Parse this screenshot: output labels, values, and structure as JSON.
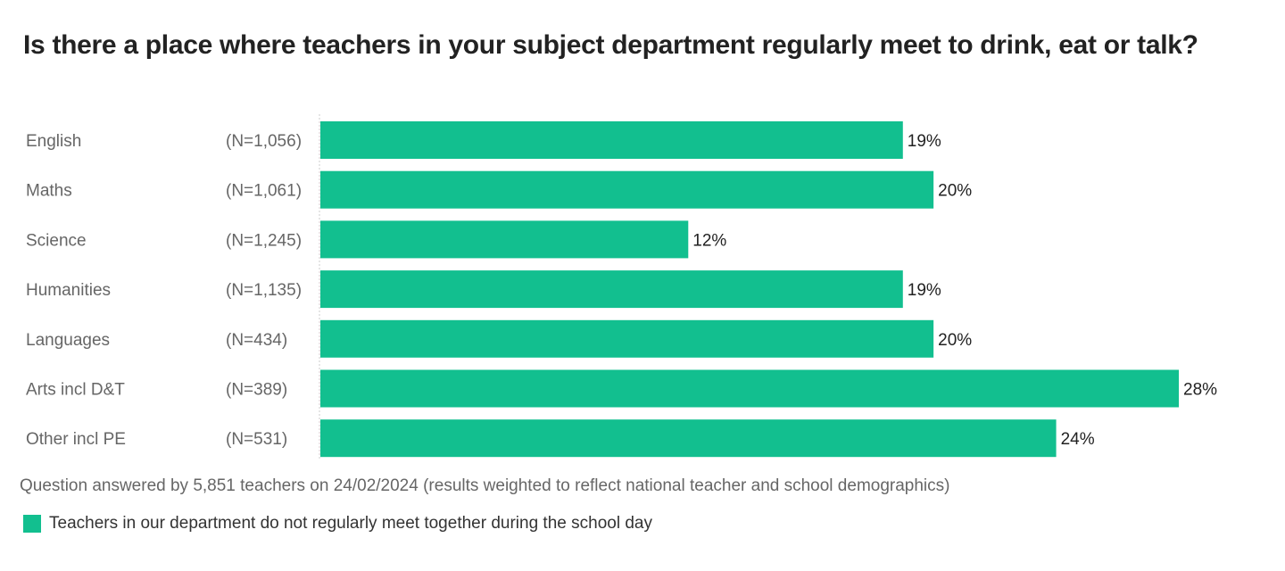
{
  "chart_data": {
    "type": "bar",
    "orientation": "horizontal",
    "title": "Is there a place where teachers in your subject department regularly meet to drink, eat or talk?",
    "categories": [
      "English",
      "Maths",
      "Science",
      "Humanities",
      "Languages",
      "Arts incl D&T",
      "Other incl PE"
    ],
    "sample_sizes": [
      "(N=1,056)",
      "(N=1,061)",
      "(N=1,245)",
      "(N=1,135)",
      "(N=434)",
      "(N=389)",
      "(N=531)"
    ],
    "series": [
      {
        "name": "Teachers in our department do not regularly meet together during the school day",
        "values": [
          19,
          20,
          12,
          19,
          20,
          28,
          24
        ],
        "color": "#12bf8f"
      }
    ],
    "value_labels": [
      "19%",
      "20%",
      "12%",
      "19%",
      "20%",
      "28%",
      "24%"
    ],
    "xlim": [
      0,
      28
    ],
    "legend_position": "bottom-left",
    "note": "Question answered by 5,851 teachers on 24/02/2024 (results weighted to reflect national teacher and school demographics)"
  }
}
